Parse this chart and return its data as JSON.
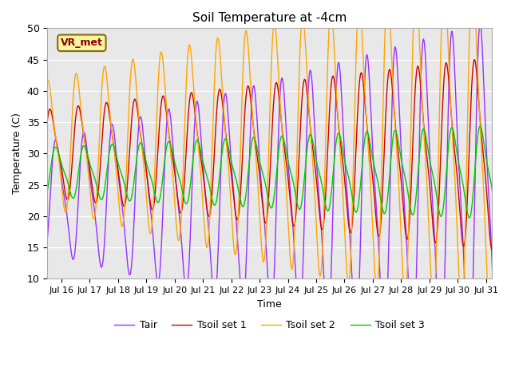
{
  "title": "Soil Temperature at -4cm",
  "xlabel": "Time",
  "ylabel": "Temperature (C)",
  "ylim": [
    10,
    50
  ],
  "xlim_days": [
    15.5,
    31.2
  ],
  "xtick_positions": [
    16,
    17,
    18,
    19,
    20,
    21,
    22,
    23,
    24,
    25,
    26,
    27,
    28,
    29,
    30,
    31
  ],
  "xtick_labels": [
    "Jul 16",
    "Jul 17",
    "Jul 18",
    "Jul 19",
    "Jul 20",
    "Jul 21",
    "Jul 22",
    "Jul 23",
    "Jul 24",
    "Jul 25",
    "Jul 26",
    "Jul 27",
    "Jul 28",
    "Jul 29",
    "Jul 30",
    "Jul 31"
  ],
  "background_color": "#e8e8e8",
  "grid_color": "#ffffff",
  "colors": {
    "Tair": "#9b30ff",
    "Tsoil1": "#cc0000",
    "Tsoil2": "#ffa500",
    "Tsoil3": "#00cc00"
  },
  "legend_label": "VR_met",
  "series_labels": [
    "Tair",
    "Tsoil set 1",
    "Tsoil set 2",
    "Tsoil set 3"
  ],
  "Tair_base": 23.0,
  "Tair_amp": 10.0,
  "Tair_amp_grow": 0.15,
  "Tair_phase_shift": 0.35,
  "Tsoil1_base": 30.0,
  "Tsoil1_amp": 8.0,
  "Tsoil1_amp_grow": 0.08,
  "Tsoil1_phase_shift": 0.15,
  "Tsoil2_base": 31.5,
  "Tsoil2_amp": 11.5,
  "Tsoil2_amp_grow": 0.12,
  "Tsoil2_phase_shift": 0.08,
  "Tsoil3_base": 27.0,
  "Tsoil3_amp": 4.5,
  "Tsoil3_amp_grow": 0.06,
  "Tsoil3_phase_shift": 0.35
}
